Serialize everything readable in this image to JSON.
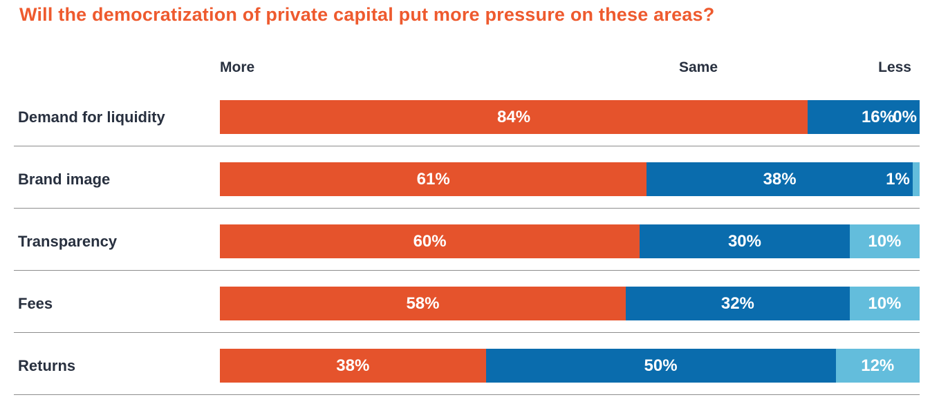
{
  "chart_data": {
    "type": "bar",
    "orientation": "horizontal",
    "stacked": true,
    "title": "Will the democratization of private capital put more pressure on these areas?",
    "title_color": "#EE5A2E",
    "column_headers": [
      "More",
      "Same",
      "Less"
    ],
    "categories": [
      "Demand for liquidity",
      "Brand image",
      "Transparency",
      "Fees",
      "Returns"
    ],
    "series": [
      {
        "name": "More",
        "color": "#E5532C",
        "values": [
          84,
          61,
          60,
          58,
          38
        ]
      },
      {
        "name": "Same",
        "color": "#0A6CAD",
        "values": [
          16,
          38,
          30,
          32,
          50
        ]
      },
      {
        "name": "Less",
        "color": "#63BDDC",
        "values": [
          0,
          1,
          10,
          10,
          12
        ]
      }
    ],
    "xlim": [
      0,
      100
    ],
    "value_label_format": "{v}%",
    "value_label_color": "#FFFFFF",
    "category_label_color": "#28303F",
    "divider_color": "#8C8C8C",
    "grid": false,
    "legend_position": "top-column-headers"
  }
}
